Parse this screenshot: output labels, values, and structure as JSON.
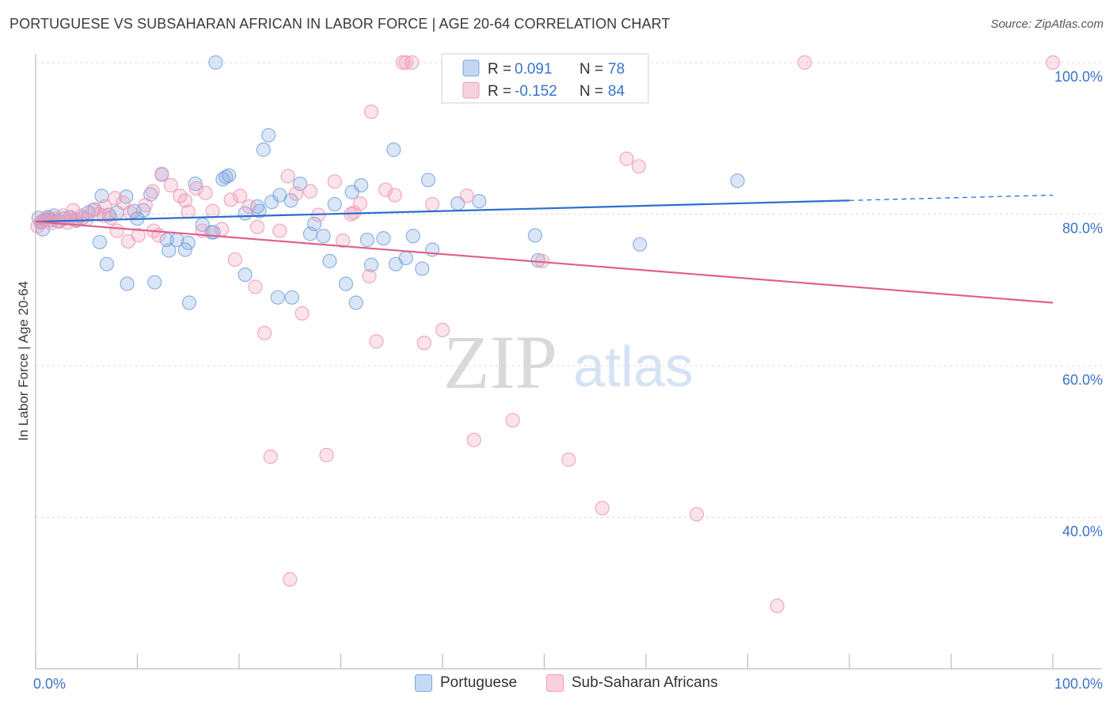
{
  "header": {
    "title": "PORTUGUESE VS SUBSAHARAN AFRICAN IN LABOR FORCE | AGE 20-64 CORRELATION CHART",
    "source": "Source: ZipAtlas.com"
  },
  "watermark": {
    "zip": "ZIP",
    "atlas": "atlas"
  },
  "chart_data": {
    "type": "scatter",
    "title": "PORTUGUESE VS SUBSAHARAN AFRICAN IN LABOR FORCE | AGE 20-64 CORRELATION CHART",
    "xlabel": "",
    "ylabel": "In Labor Force | Age 20-64",
    "xlim": [
      0,
      100
    ],
    "ylim": [
      20,
      103
    ],
    "x_tick_labels": {
      "left": "0.0%",
      "right": "100.0%"
    },
    "y_ticks": [
      {
        "value": 100,
        "label": "100.0%"
      },
      {
        "value": 80,
        "label": "80.0%"
      },
      {
        "value": 60,
        "label": "60.0%"
      },
      {
        "value": 40,
        "label": "40.0%"
      }
    ],
    "grid": "horizontal dashed",
    "legend_top": [
      {
        "r_label": "R =",
        "r_value": "0.091",
        "n_label": "N =",
        "n_value": "78"
      },
      {
        "r_label": "R =",
        "r_value": "-0.152",
        "n_label": "N =",
        "n_value": "84"
      }
    ],
    "series": [
      {
        "name": "Portuguese",
        "color": "#7aa6e0",
        "line_color": "#2b6fcf",
        "trend": {
          "x0": 0,
          "y0": 79.0,
          "x1": 80,
          "y1": 81.8,
          "dash_to_x": 100,
          "dash_to_y": 82.5
        },
        "points": [
          [
            0.3,
            79.5
          ],
          [
            0.6,
            79.0
          ],
          [
            0.9,
            79.3
          ],
          [
            1.2,
            79.6
          ],
          [
            1.5,
            79.2
          ],
          [
            1.8,
            79.8
          ],
          [
            2.2,
            79.1
          ],
          [
            2.8,
            79.4
          ],
          [
            3.4,
            79.6
          ],
          [
            3.9,
            79.2
          ],
          [
            4.6,
            79.5
          ],
          [
            5.2,
            80.2
          ],
          [
            5.8,
            80.6
          ],
          [
            6.5,
            82.4
          ],
          [
            7.2,
            79.9
          ],
          [
            8.0,
            80.2
          ],
          [
            8.9,
            82.3
          ],
          [
            9.7,
            80.4
          ],
          [
            10.6,
            80.5
          ],
          [
            11.3,
            82.6
          ],
          [
            12.4,
            85.2
          ],
          [
            13.1,
            75.2
          ],
          [
            13.9,
            76.6
          ],
          [
            15.7,
            84.0
          ],
          [
            16.4,
            78.6
          ],
          [
            17.3,
            77.6
          ],
          [
            18.4,
            84.6
          ],
          [
            19.0,
            85.1
          ],
          [
            20.6,
            80.1
          ],
          [
            21.8,
            81.0
          ],
          [
            22.4,
            88.5
          ],
          [
            22.9,
            90.4
          ],
          [
            24.0,
            82.5
          ],
          [
            25.1,
            81.8
          ],
          [
            26.0,
            84.0
          ],
          [
            27.0,
            77.4
          ],
          [
            27.4,
            78.7
          ],
          [
            28.9,
            73.8
          ],
          [
            29.4,
            81.3
          ],
          [
            30.5,
            70.8
          ],
          [
            31.5,
            68.3
          ],
          [
            32.0,
            83.8
          ],
          [
            32.6,
            76.6
          ],
          [
            33.0,
            73.3
          ],
          [
            34.2,
            76.8
          ],
          [
            35.2,
            88.5
          ],
          [
            35.4,
            73.4
          ],
          [
            36.4,
            74.2
          ],
          [
            37.1,
            77.1
          ],
          [
            38.0,
            72.8
          ],
          [
            38.6,
            84.5
          ],
          [
            39.0,
            75.3
          ],
          [
            41.5,
            81.4
          ],
          [
            43.6,
            81.7
          ],
          [
            49.1,
            77.2
          ],
          [
            49.4,
            73.9
          ],
          [
            59.4,
            76.0
          ],
          [
            69.0,
            84.4
          ],
          [
            17.7,
            100.0
          ],
          [
            0.7,
            78.0
          ],
          [
            7.0,
            73.4
          ],
          [
            9.0,
            70.8
          ],
          [
            12.9,
            76.6
          ],
          [
            15.1,
            68.3
          ],
          [
            17.5,
            77.6
          ],
          [
            20.6,
            72.0
          ],
          [
            18.7,
            84.9
          ],
          [
            15.0,
            76.2
          ],
          [
            10.0,
            79.4
          ],
          [
            6.3,
            76.3
          ],
          [
            25.2,
            69.0
          ],
          [
            23.8,
            69.0
          ],
          [
            23.2,
            81.6
          ],
          [
            11.7,
            71.0
          ],
          [
            14.7,
            75.3
          ],
          [
            22.0,
            80.4
          ],
          [
            28.3,
            77.1
          ],
          [
            31.1,
            82.9
          ]
        ]
      },
      {
        "name": "Sub-Saharan Africans",
        "color": "#f09ab6",
        "line_color": "#e0608a",
        "trend": {
          "x0": 0,
          "y0": 79.0,
          "x1": 100,
          "y1": 68.3
        },
        "points": [
          [
            0.2,
            78.4
          ],
          [
            0.5,
            78.9
          ],
          [
            0.8,
            79.2
          ],
          [
            1.1,
            79.5
          ],
          [
            1.5,
            78.8
          ],
          [
            1.9,
            79.4
          ],
          [
            2.3,
            79.0
          ],
          [
            2.7,
            79.8
          ],
          [
            3.1,
            78.9
          ],
          [
            3.6,
            79.4
          ],
          [
            4.0,
            79.1
          ],
          [
            4.5,
            79.8
          ],
          [
            5.0,
            79.3
          ],
          [
            5.6,
            80.5
          ],
          [
            6.2,
            80.0
          ],
          [
            6.8,
            81.0
          ],
          [
            7.4,
            79.5
          ],
          [
            8.0,
            77.8
          ],
          [
            8.6,
            81.5
          ],
          [
            9.3,
            80.2
          ],
          [
            10.1,
            77.2
          ],
          [
            10.8,
            81.2
          ],
          [
            11.6,
            77.8
          ],
          [
            12.4,
            85.3
          ],
          [
            13.3,
            83.8
          ],
          [
            14.2,
            82.4
          ],
          [
            15.0,
            80.3
          ],
          [
            15.8,
            83.4
          ],
          [
            16.7,
            82.8
          ],
          [
            17.4,
            80.4
          ],
          [
            18.3,
            78.0
          ],
          [
            19.2,
            81.9
          ],
          [
            20.1,
            82.4
          ],
          [
            21.0,
            81.0
          ],
          [
            21.8,
            78.3
          ],
          [
            22.5,
            64.3
          ],
          [
            23.1,
            48.0
          ],
          [
            24.0,
            77.8
          ],
          [
            24.8,
            85.0
          ],
          [
            25.6,
            82.7
          ],
          [
            26.2,
            66.9
          ],
          [
            27.0,
            83.0
          ],
          [
            27.8,
            79.9
          ],
          [
            28.6,
            48.2
          ],
          [
            29.4,
            84.3
          ],
          [
            30.2,
            76.5
          ],
          [
            31.0,
            80.0
          ],
          [
            31.9,
            81.4
          ],
          [
            32.8,
            71.8
          ],
          [
            33.5,
            63.2
          ],
          [
            34.4,
            83.2
          ],
          [
            35.3,
            82.5
          ],
          [
            36.1,
            100.0
          ],
          [
            37.0,
            100.0
          ],
          [
            38.2,
            63.0
          ],
          [
            39.0,
            81.3
          ],
          [
            40.0,
            64.7
          ],
          [
            42.4,
            82.4
          ],
          [
            44.6,
            100.0
          ],
          [
            46.9,
            52.8
          ],
          [
            49.8,
            73.8
          ],
          [
            52.4,
            47.6
          ],
          [
            55.7,
            41.2
          ],
          [
            58.1,
            87.3
          ],
          [
            59.3,
            86.3
          ],
          [
            65.0,
            40.4
          ],
          [
            72.9,
            28.3
          ],
          [
            75.6,
            100.0
          ],
          [
            100.0,
            100.0
          ],
          [
            43.1,
            50.2
          ],
          [
            33.0,
            93.5
          ],
          [
            25.0,
            31.8
          ],
          [
            21.6,
            70.4
          ],
          [
            19.6,
            74.0
          ],
          [
            16.4,
            77.8
          ],
          [
            14.7,
            81.8
          ],
          [
            12.1,
            77.2
          ],
          [
            9.1,
            76.4
          ],
          [
            7.8,
            82.1
          ],
          [
            6.7,
            79.8
          ],
          [
            3.7,
            80.5
          ],
          [
            31.3,
            80.2
          ],
          [
            36.4,
            100.0
          ],
          [
            11.5,
            83.0
          ]
        ]
      }
    ]
  },
  "legend_bottom": [
    {
      "label": "Portuguese",
      "swatch": "#c5d9f3",
      "border": "#7aa6e0"
    },
    {
      "label": "Sub-Saharan Africans",
      "swatch": "#fbd0de",
      "border": "#f09ab6"
    }
  ]
}
